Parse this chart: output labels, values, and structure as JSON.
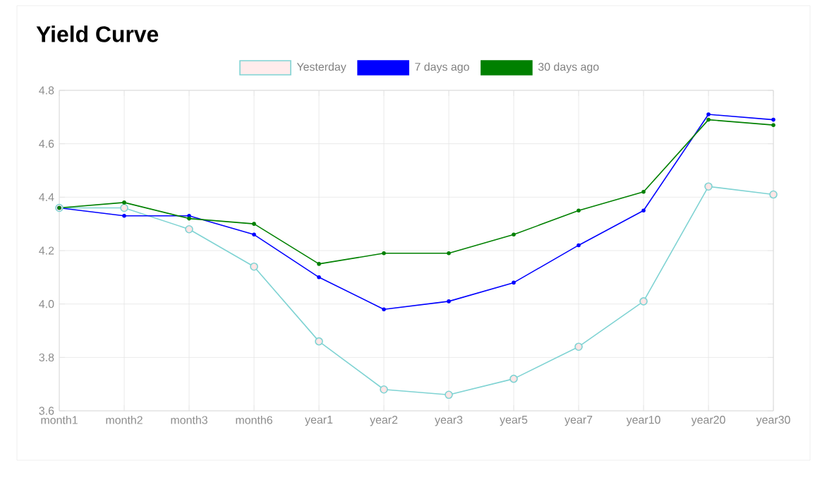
{
  "chart_data": {
    "type": "line",
    "title": "Yield Curve",
    "categories": [
      "month1",
      "month2",
      "month3",
      "month6",
      "year1",
      "year2",
      "year3",
      "year5",
      "year7",
      "year10",
      "year20",
      "year30"
    ],
    "series": [
      {
        "name": "Yesterday",
        "color": "#7fd3d3",
        "values": [
          4.36,
          4.36,
          4.28,
          4.14,
          3.86,
          3.68,
          3.66,
          3.72,
          3.84,
          4.01,
          4.44,
          4.41
        ]
      },
      {
        "name": "7 days ago",
        "color": "#0000ff",
        "values": [
          4.36,
          4.33,
          4.33,
          4.26,
          4.1,
          3.98,
          4.01,
          4.08,
          4.22,
          4.35,
          4.71,
          4.69
        ]
      },
      {
        "name": "30 days ago",
        "color": "#008000",
        "values": [
          4.36,
          4.38,
          4.32,
          4.3,
          4.15,
          4.19,
          4.19,
          4.26,
          4.35,
          4.42,
          4.69,
          4.67
        ]
      }
    ],
    "ylim": [
      3.6,
      4.8
    ],
    "yticks": [
      3.6,
      3.8,
      {
        "value": 4.0,
        "label": "4.0"
      },
      4.2,
      4.4,
      4.6,
      4.8
    ],
    "grid": true,
    "legend": "top",
    "marker": "circle",
    "line_style": "solid"
  }
}
